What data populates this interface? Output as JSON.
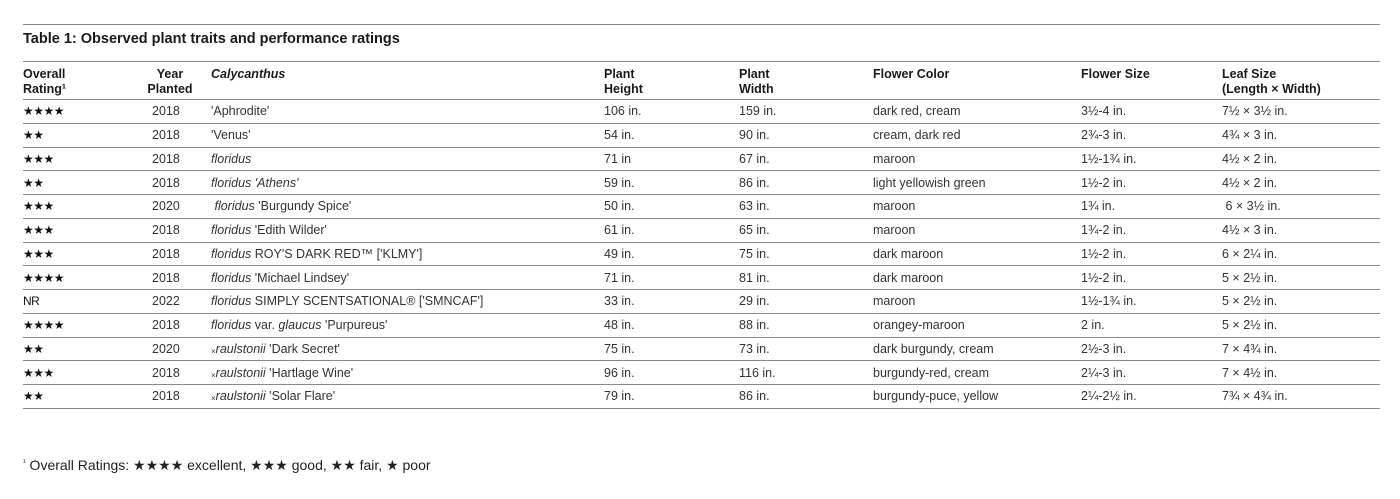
{
  "table_title": "Table 1: Observed plant traits and performance ratings",
  "headers": {
    "rating_l1": "Overall",
    "rating_l2": "Rating¹",
    "year_l1": "Year",
    "year_l2": "Planted",
    "cultivar": "Calycanthus",
    "height_l1": "Plant",
    "height_l2": "Height",
    "width_l1": "Plant",
    "width_l2": "Width",
    "flower_color": "Flower Color",
    "flower_size": "Flower Size",
    "leaf_l1": "Leaf Size",
    "leaf_l2": "(Length × Width)"
  },
  "rows": [
    {
      "rating": "★★★★",
      "year": "2018",
      "pre": "",
      "sp": "",
      "mid": "",
      "sp2": "",
      "post": "'Aphrodite'",
      "height": "106 in.",
      "width": "159 in.",
      "color": "dark red, cream",
      "fsize": "3½-4 in.",
      "leaf": "7½ × 3½ in."
    },
    {
      "rating": "★★",
      "year": "2018",
      "pre": "",
      "sp": "",
      "mid": "",
      "sp2": "",
      "post": "'Venus'",
      "height": "54 in.",
      "width": "90 in.",
      "color": "cream, dark red",
      "fsize": "2¾-3 in.",
      "leaf": "4¾ × 3 in."
    },
    {
      "rating": "★★★",
      "year": "2018",
      "pre": "",
      "sp": "floridus",
      "mid": "",
      "sp2": "",
      "post": "",
      "height": "71 in",
      "width": "67 in.",
      "color": "maroon",
      "fsize": "1½-1¾ in.",
      "leaf": "4½ × 2 in."
    },
    {
      "rating": "★★",
      "year": "2018",
      "pre": "",
      "sp": "floridus 'Athens'",
      "mid": "",
      "sp2": "",
      "post": "",
      "height": "59 in.",
      "width": "86 in.",
      "color": "light yellowish green",
      "fsize": "1½-2 in.",
      "leaf": "4½ × 2 in."
    },
    {
      "rating": "★★★",
      "year": "2020",
      "pre": "",
      "sp": " floridus",
      "mid": "",
      "sp2": "",
      "post": " 'Burgundy Spice'",
      "height": "50 in.",
      "width": "63 in.",
      "color": "maroon",
      "fsize": "1¾ in.",
      "leaf": " 6 × 3½ in."
    },
    {
      "rating": "★★★",
      "year": "2018",
      "pre": "",
      "sp": "floridus",
      "mid": "",
      "sp2": "",
      "post": " 'Edith Wilder'",
      "height": "61 in.",
      "width": "65 in.",
      "color": "maroon",
      "fsize": "1¾-2 in.",
      "leaf": "4½ × 3 in."
    },
    {
      "rating": "★★★",
      "year": "2018",
      "pre": "",
      "sp": "floridus",
      "mid": "",
      "sp2": "",
      "post": " ROY'S DARK RED™ ['KLMY']",
      "height": "49 in.",
      "width": "75 in.",
      "color": "dark maroon",
      "fsize": "1½-2 in.",
      "leaf": "6 × 2¼ in."
    },
    {
      "rating": "★★★★",
      "year": "2018",
      "pre": "",
      "sp": "floridus",
      "mid": "",
      "sp2": "",
      "post": " 'Michael Lindsey'",
      "height": "71 in.",
      "width": "81 in.",
      "color": "dark maroon",
      "fsize": "1½-2 in.",
      "leaf": "5 × 2½ in."
    },
    {
      "rating": "NR",
      "year": "2022",
      "pre": "",
      "sp": "floridus",
      "mid": "",
      "sp2": "",
      "post": " SIMPLY SCENTSATIONAL® ['SMNCAF']",
      "height": "33 in.",
      "width": "29 in.",
      "color": "maroon",
      "fsize": "1½-1¾ in.",
      "leaf": "5 × 2½ in."
    },
    {
      "rating": "★★★★",
      "year": "2018",
      "pre": "",
      "sp": "floridus",
      "mid": " var. ",
      "sp2": "glaucus",
      "post": " 'Purpureus'",
      "height": "48 in.",
      "width": "88 in.",
      "color": "orangey-maroon",
      "fsize": "2 in.",
      "leaf": "5 × 2½ in."
    },
    {
      "rating": "★★",
      "year": "2020",
      "pre": "×",
      "sp": "raulstonii",
      "mid": "",
      "sp2": "",
      "post": " 'Dark Secret'",
      "height": "75 in.",
      "width": "73 in.",
      "color": "dark burgundy, cream",
      "fsize": "2½-3 in.",
      "leaf": "7 × 4¾ in."
    },
    {
      "rating": "★★★",
      "year": "2018",
      "pre": "×",
      "sp": "raulstonii",
      "mid": "",
      "sp2": "",
      "post": " 'Hartlage Wine'",
      "height": "96 in.",
      "width": "116 in.",
      "color": "burgundy-red, cream",
      "fsize": "2¼-3 in.",
      "leaf": "7 × 4½ in."
    },
    {
      "rating": "★★",
      "year": "2018",
      "pre": "×",
      "sp": "raulstonii",
      "mid": "",
      "sp2": "",
      "post": " 'Solar Flare'",
      "height": "79 in.",
      "width": "86 in.",
      "color": "burgundy-puce, yellow",
      "fsize": "2¼-2½ in.",
      "leaf": "7¾ × 4¾ in."
    }
  ],
  "footnote": {
    "mark": "¹",
    "text": " Overall Ratings: ★★★★ excellent, ★★★ good, ★★ fair, ★ poor"
  }
}
